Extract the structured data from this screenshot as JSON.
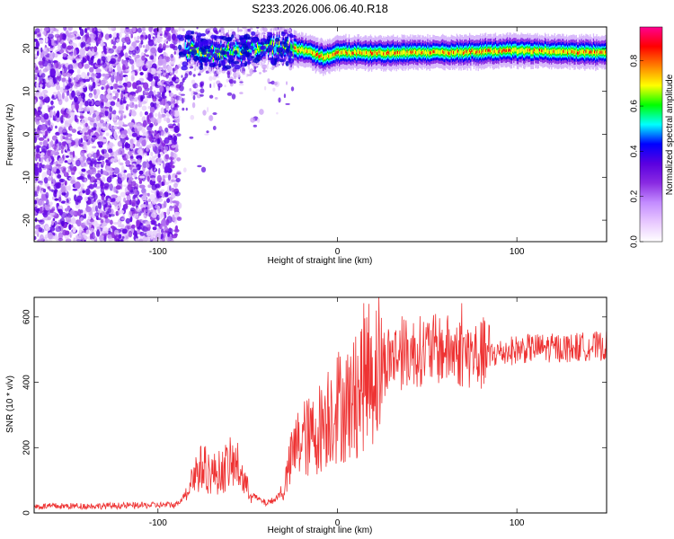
{
  "title": "S233.2026.006.06.40.R18",
  "chart_data": [
    {
      "type": "heatmap",
      "xlabel": "Height of straight line (km)",
      "ylabel": "Frequency (Hz)",
      "xlim": [
        -169,
        150
      ],
      "ylim": [
        -25,
        25
      ],
      "x_ticks": [
        -100,
        0,
        100
      ],
      "y_ticks": [
        -20,
        -10,
        0,
        10,
        20
      ],
      "colorbar": {
        "label": "Normalized spectral amplitude",
        "range": [
          0,
          0.95
        ],
        "ticks": [
          0.0,
          0.2,
          0.4,
          0.6,
          0.8
        ],
        "colors": [
          "#ffffff",
          "#e8c8ff",
          "#c38cff",
          "#8a2be2",
          "#5a00e0",
          "#0000ff",
          "#00ffff",
          "#00ff00",
          "#ffff00",
          "#ff8000",
          "#ff0000",
          "#ff0090"
        ]
      },
      "features": {
        "noise_region_x": [
          -169,
          -88
        ],
        "transition_x": [
          -88,
          -25
        ],
        "carrier_line": {
          "x": [
            -85,
            -70,
            -55,
            -40,
            -25,
            -15,
            -8,
            0,
            20,
            60,
            100,
            150
          ],
          "freq": [
            20.0,
            19.0,
            19.5,
            20.5,
            20.0,
            19.0,
            18.0,
            19.0,
            19.0,
            19.0,
            19.5,
            19.0
          ]
        }
      }
    },
    {
      "type": "line",
      "xlabel": "Height of straight line (km)",
      "ylabel": "SNR (10 * v/v)",
      "xlim": [
        -169,
        150
      ],
      "ylim": [
        0,
        660
      ],
      "x_ticks": [
        -100,
        0,
        100
      ],
      "y_ticks": [
        0,
        200,
        400,
        600
      ],
      "color": "#ee3333",
      "series": [
        {
          "name": "SNR",
          "x": [
            -169,
            -120,
            -90,
            -85,
            -80,
            -75,
            -70,
            -65,
            -60,
            -55,
            -50,
            -45,
            -40,
            -35,
            -30,
            -25,
            -20,
            -15,
            -10,
            -5,
            0,
            5,
            10,
            15,
            20,
            25,
            30,
            40,
            50,
            60,
            70,
            80,
            90,
            100,
            110,
            120,
            130,
            140,
            150
          ],
          "y": [
            20,
            22,
            25,
            55,
            120,
            140,
            120,
            125,
            150,
            140,
            70,
            45,
            30,
            40,
            70,
            180,
            230,
            230,
            260,
            310,
            330,
            330,
            350,
            420,
            440,
            460,
            480,
            490,
            500,
            500,
            490,
            480,
            490,
            500,
            505,
            505,
            505,
            510,
            510
          ]
        }
      ]
    }
  ]
}
